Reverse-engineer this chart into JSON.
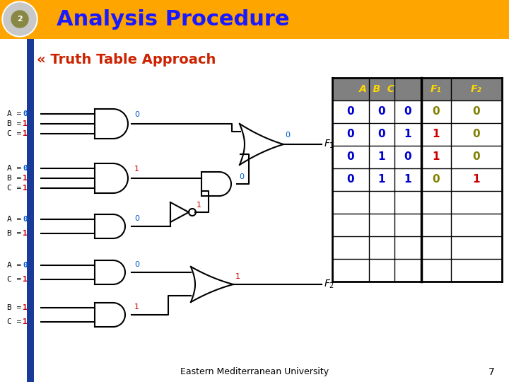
{
  "title": "Analysis Procedure",
  "subtitle": "« Truth Table Approach",
  "title_bg": "#FFA500",
  "title_color": "#1a1aff",
  "slide_bg": "#ffffff",
  "footer": "Eastern Mediterranean University",
  "page_num": "7",
  "table": {
    "header_bg": "#808080",
    "header_color": "#FFD700",
    "col_abc_color": "#0000cc",
    "rows": [
      {
        "abc": [
          0,
          0,
          0
        ],
        "f1": 0,
        "f2": 0,
        "f1_color": "#808000",
        "f2_color": "#808000"
      },
      {
        "abc": [
          0,
          0,
          1
        ],
        "f1": 1,
        "f2": 0,
        "f1_color": "#cc0000",
        "f2_color": "#808000"
      },
      {
        "abc": [
          0,
          1,
          0
        ],
        "f1": 1,
        "f2": 0,
        "f1_color": "#cc0000",
        "f2_color": "#808000"
      },
      {
        "abc": [
          0,
          1,
          1
        ],
        "f1": 0,
        "f2": 1,
        "f1_color": "#808000",
        "f2_color": "#cc0000"
      }
    ],
    "empty_rows": 4
  },
  "sig_color_0": "#0055cc",
  "sig_color_1": "#cc0000",
  "val_color_0": "#0055cc",
  "val_color_1": "#cc0000"
}
